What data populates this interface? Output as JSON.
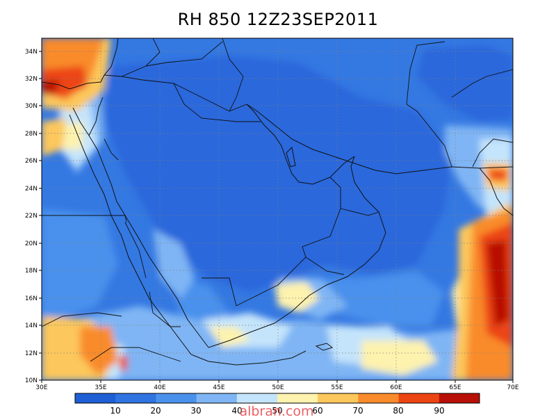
{
  "title": "RH 850 12Z23SEP2011",
  "lon_labels": [
    "30E",
    "35E",
    "40E",
    "45E",
    "50E",
    "55E",
    "60E",
    "65E",
    "70E"
  ],
  "lat_labels": [
    "34N",
    "32N",
    "30N",
    "28N",
    "26N",
    "24N",
    "22N",
    "20N",
    "18N",
    "16N",
    "14N",
    "12N",
    "10N"
  ],
  "colorbar": {
    "labels": [
      "10",
      "20",
      "30",
      "40",
      "50",
      "60",
      "70",
      "80",
      "90"
    ],
    "colors": [
      "#1f5fd6",
      "#2f74e0",
      "#4a91ec",
      "#7fb5f4",
      "#c4e4fb",
      "#fdf2ae",
      "#fcc75c",
      "#f98b2c",
      "#ec4513",
      "#b81006"
    ]
  },
  "watermark": "albran.com"
}
